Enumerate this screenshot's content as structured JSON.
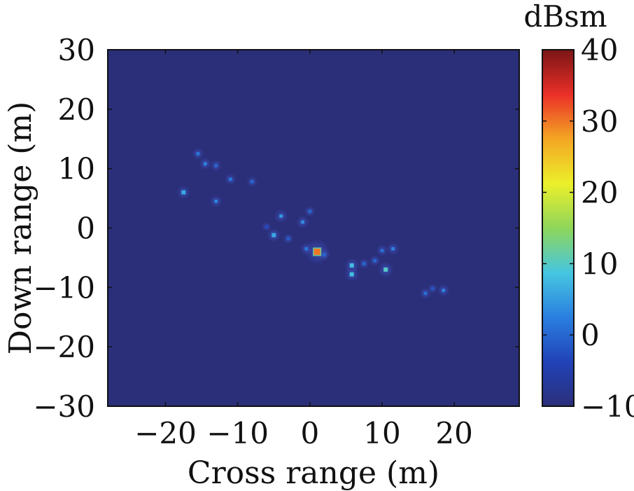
{
  "chart_data": {
    "type": "heatmap",
    "title": "",
    "xlabel": "Cross range (m)",
    "ylabel": "Down range (m)",
    "xlim": [
      -28,
      29
    ],
    "ylim": [
      -30,
      30
    ],
    "x_ticks": [
      -20,
      -10,
      0,
      10,
      20
    ],
    "y_ticks": [
      -30,
      -20,
      -10,
      0,
      10,
      20,
      30
    ],
    "x_tick_labels": [
      "−20",
      "−10",
      "0",
      "10",
      "20"
    ],
    "y_tick_labels": [
      "−30",
      "−20",
      "−10",
      "0",
      "10",
      "20",
      "30"
    ],
    "background_value_dbsm": -10,
    "colorbar": {
      "title": "dBsm",
      "range": [
        -10,
        40
      ],
      "ticks": [
        -10,
        0,
        10,
        20,
        30,
        40
      ],
      "tick_labels": [
        "−10",
        "0",
        "10",
        "20",
        "30",
        "40"
      ],
      "colormap": "jet",
      "colors": [
        "#2b2f7a",
        "#2142b8",
        "#2a7fe0",
        "#46c6e0",
        "#8fd65a",
        "#ecef2a",
        "#f4a624",
        "#ea2f28",
        "#7a1515"
      ]
    },
    "scatterers": [
      {
        "x": 1.0,
        "y": -4.0,
        "value": 30
      },
      {
        "x": 10.5,
        "y": -7.0,
        "value": 10
      },
      {
        "x": 5.8,
        "y": -6.3,
        "value": 8
      },
      {
        "x": 5.8,
        "y": -7.8,
        "value": 8
      },
      {
        "x": -5.0,
        "y": -1.2,
        "value": 6
      },
      {
        "x": -17.5,
        "y": 6.0,
        "value": 6
      },
      {
        "x": -4.0,
        "y": 2.0,
        "value": 5
      },
      {
        "x": -1.0,
        "y": 1.0,
        "value": 4
      },
      {
        "x": 11.5,
        "y": -3.5,
        "value": 3
      },
      {
        "x": 18.5,
        "y": -10.5,
        "value": 3
      },
      {
        "x": -14.5,
        "y": 10.8,
        "value": 3
      },
      {
        "x": -15.5,
        "y": 12.5,
        "value": 2
      },
      {
        "x": -13.0,
        "y": 4.5,
        "value": 3
      },
      {
        "x": -11.0,
        "y": 8.2,
        "value": 2
      },
      {
        "x": 16.0,
        "y": -11.0,
        "value": 1
      },
      {
        "x": -0.5,
        "y": -3.5,
        "value": 2
      },
      {
        "x": 10.0,
        "y": -3.8,
        "value": 1
      },
      {
        "x": -8.0,
        "y": 7.8,
        "value": 0
      },
      {
        "x": 0.0,
        "y": 2.8,
        "value": 0
      },
      {
        "x": -13.0,
        "y": 10.5,
        "value": 0
      },
      {
        "x": 7.5,
        "y": -6.0,
        "value": 0
      },
      {
        "x": 9.0,
        "y": -5.5,
        "value": 0
      },
      {
        "x": -3.0,
        "y": -1.8,
        "value": -1
      },
      {
        "x": 2.0,
        "y": -4.5,
        "value": 0
      },
      {
        "x": 17.0,
        "y": -10.2,
        "value": -2
      },
      {
        "x": -6.0,
        "y": 0.2,
        "value": -3
      }
    ]
  }
}
